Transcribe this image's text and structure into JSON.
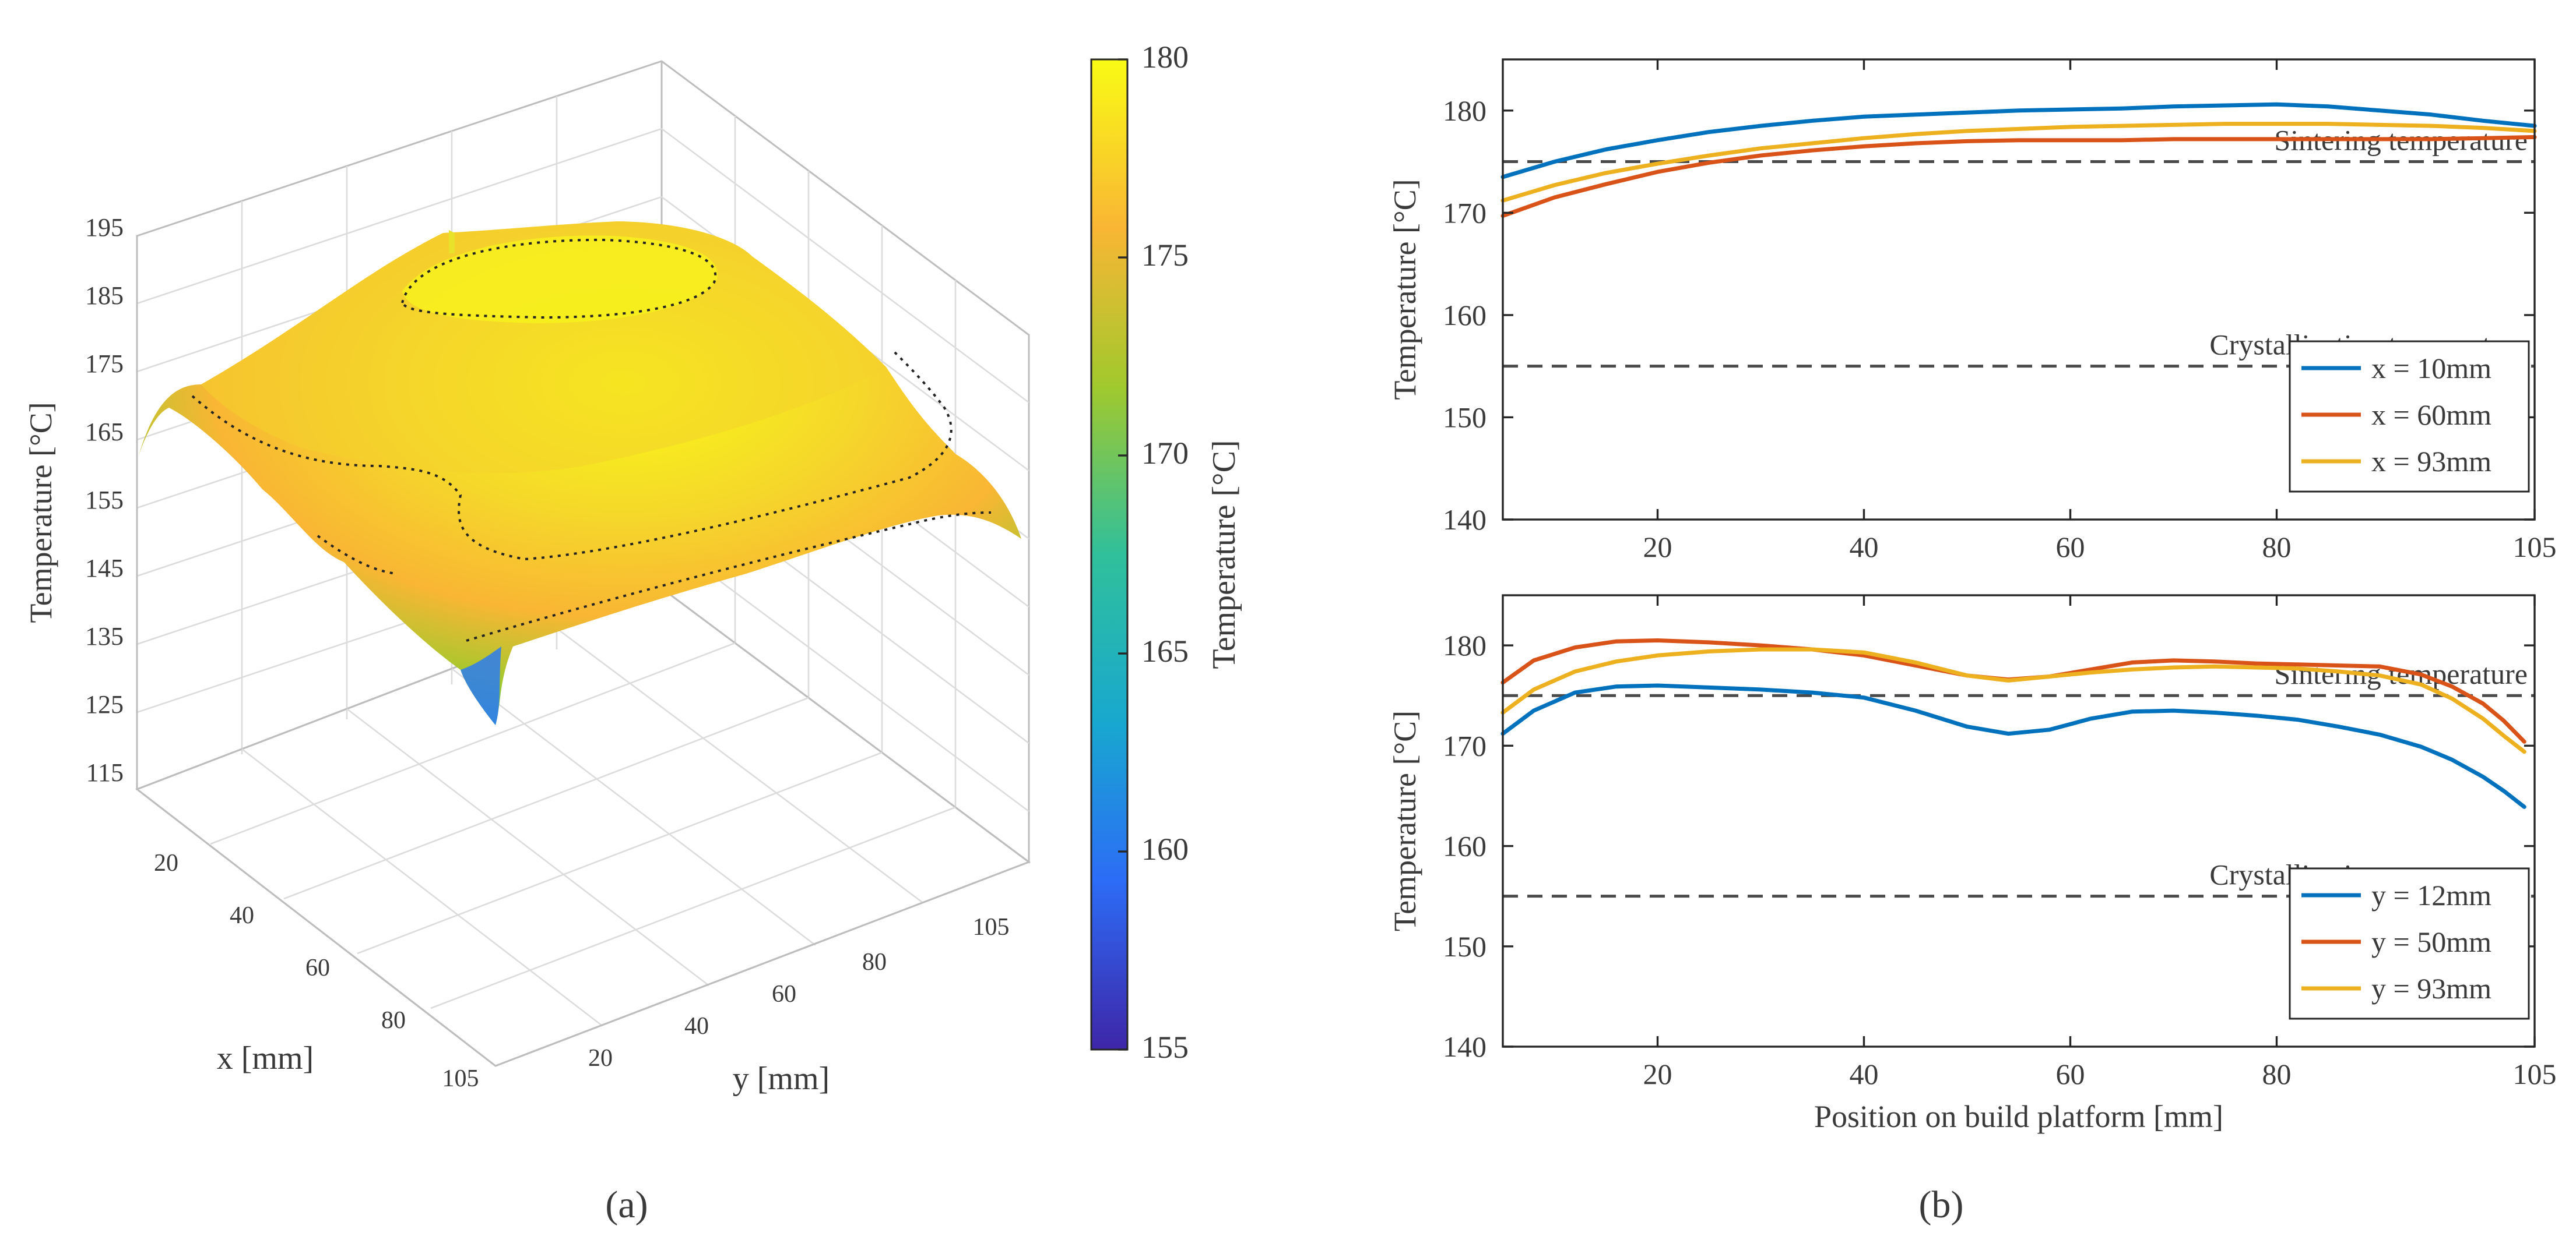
{
  "figure": {
    "panel_a_label": "(a)",
    "panel_b_label": "(b)"
  },
  "surface": {
    "zlabel": "Temperature [°C]",
    "xlabel": "x [mm]",
    "ylabel": "y [mm]",
    "zticks": [
      "195",
      "185",
      "175",
      "165",
      "155",
      "145",
      "135",
      "125",
      "115"
    ],
    "xticks": [
      "20",
      "40",
      "60",
      "80",
      "105"
    ],
    "yticks": [
      "20",
      "40",
      "60",
      "80",
      "105"
    ],
    "colorbar_label": "Temperature [°C]",
    "colorbar_ticks": [
      "180",
      "175",
      "170",
      "165",
      "160",
      "155"
    ],
    "colormap": [
      "#3e26a8",
      "#2c6cf6",
      "#18a8cf",
      "#30c09b",
      "#a1c92d",
      "#f9b634",
      "#f9fb15"
    ]
  },
  "chart_data": [
    {
      "type": "line",
      "title": "",
      "xlabel": "",
      "ylabel": "Temperature [°C]",
      "xlim": [
        5,
        105
      ],
      "ylim": [
        140,
        185
      ],
      "xticks": [
        20,
        40,
        60,
        80,
        105
      ],
      "yticks": [
        140,
        150,
        160,
        170,
        180
      ],
      "reference_lines": [
        {
          "label": "Sintering temperature",
          "value": 175
        },
        {
          "label": "Crystallization temperature",
          "value": 155
        }
      ],
      "series": [
        {
          "name": "x = 10mm",
          "color": "#0072bd",
          "x": [
            5,
            10,
            15,
            20,
            25,
            30,
            35,
            40,
            45,
            50,
            55,
            60,
            65,
            70,
            75,
            80,
            85,
            90,
            95,
            100,
            105
          ],
          "values": [
            173.5,
            175.0,
            176.2,
            177.1,
            177.9,
            178.5,
            179.0,
            179.4,
            179.6,
            179.8,
            180.0,
            180.1,
            180.2,
            180.4,
            180.5,
            180.6,
            180.4,
            180.0,
            179.6,
            179.0,
            178.5
          ]
        },
        {
          "name": "x = 60mm",
          "color": "#d95319",
          "x": [
            5,
            10,
            15,
            20,
            25,
            30,
            35,
            40,
            45,
            50,
            55,
            60,
            65,
            70,
            75,
            80,
            85,
            90,
            95,
            100,
            105
          ],
          "values": [
            169.7,
            171.5,
            172.8,
            174.0,
            174.9,
            175.6,
            176.1,
            176.5,
            176.8,
            177.0,
            177.1,
            177.1,
            177.1,
            177.2,
            177.2,
            177.2,
            177.2,
            177.2,
            177.2,
            177.3,
            177.4
          ]
        },
        {
          "name": "x = 93mm",
          "color": "#edb120",
          "x": [
            5,
            10,
            15,
            20,
            25,
            30,
            35,
            40,
            45,
            50,
            55,
            60,
            65,
            70,
            75,
            80,
            85,
            90,
            95,
            100,
            105
          ],
          "values": [
            171.2,
            172.7,
            173.9,
            174.8,
            175.6,
            176.3,
            176.8,
            177.3,
            177.7,
            178.0,
            178.2,
            178.4,
            178.5,
            178.6,
            178.7,
            178.7,
            178.7,
            178.6,
            178.5,
            178.3,
            178.0
          ]
        }
      ],
      "legend_placement": "lower-right"
    },
    {
      "type": "line",
      "title": "",
      "xlabel": "Position on build platform [mm]",
      "ylabel": "Temperature [°C]",
      "xlim": [
        5,
        105
      ],
      "ylim": [
        140,
        185
      ],
      "xticks": [
        20,
        40,
        60,
        80,
        105
      ],
      "yticks": [
        140,
        150,
        160,
        170,
        180
      ],
      "reference_lines": [
        {
          "label": "Sintering temperature",
          "value": 175
        },
        {
          "label": "Crystallization temperature",
          "value": 155
        }
      ],
      "series": [
        {
          "name": "y = 12mm",
          "color": "#0072bd",
          "x": [
            5,
            8,
            12,
            16,
            20,
            25,
            30,
            35,
            40,
            45,
            50,
            54,
            58,
            62,
            66,
            70,
            74,
            78,
            82,
            86,
            90,
            94,
            97,
            100,
            102,
            104
          ],
          "values": [
            171.2,
            173.5,
            175.3,
            175.9,
            176.0,
            175.8,
            175.6,
            175.3,
            174.8,
            173.5,
            171.9,
            171.2,
            171.6,
            172.7,
            173.4,
            173.5,
            173.3,
            173.0,
            172.6,
            171.9,
            171.1,
            169.9,
            168.6,
            166.9,
            165.5,
            163.9
          ]
        },
        {
          "name": "y = 50mm",
          "color": "#d95319",
          "x": [
            5,
            8,
            12,
            16,
            20,
            25,
            30,
            35,
            40,
            45,
            50,
            54,
            58,
            62,
            66,
            70,
            74,
            78,
            82,
            86,
            90,
            94,
            97,
            100,
            102,
            104
          ],
          "values": [
            176.3,
            178.5,
            179.8,
            180.4,
            180.5,
            180.3,
            180.0,
            179.6,
            179.0,
            178.0,
            177.0,
            176.6,
            176.9,
            177.6,
            178.3,
            178.5,
            178.4,
            178.2,
            178.1,
            178.0,
            177.9,
            177.1,
            175.9,
            174.2,
            172.5,
            170.4
          ]
        },
        {
          "name": "y = 93mm",
          "color": "#edb120",
          "x": [
            5,
            8,
            12,
            16,
            20,
            25,
            30,
            35,
            40,
            45,
            50,
            54,
            58,
            62,
            66,
            70,
            74,
            78,
            82,
            86,
            90,
            94,
            97,
            100,
            102,
            104
          ],
          "values": [
            173.3,
            175.6,
            177.4,
            178.4,
            179.0,
            179.4,
            179.6,
            179.6,
            179.3,
            178.3,
            177.0,
            176.5,
            176.9,
            177.3,
            177.6,
            177.8,
            177.9,
            177.8,
            177.7,
            177.4,
            177.0,
            176.1,
            174.7,
            172.7,
            171.0,
            169.4
          ]
        }
      ],
      "legend_placement": "lower-right"
    }
  ]
}
